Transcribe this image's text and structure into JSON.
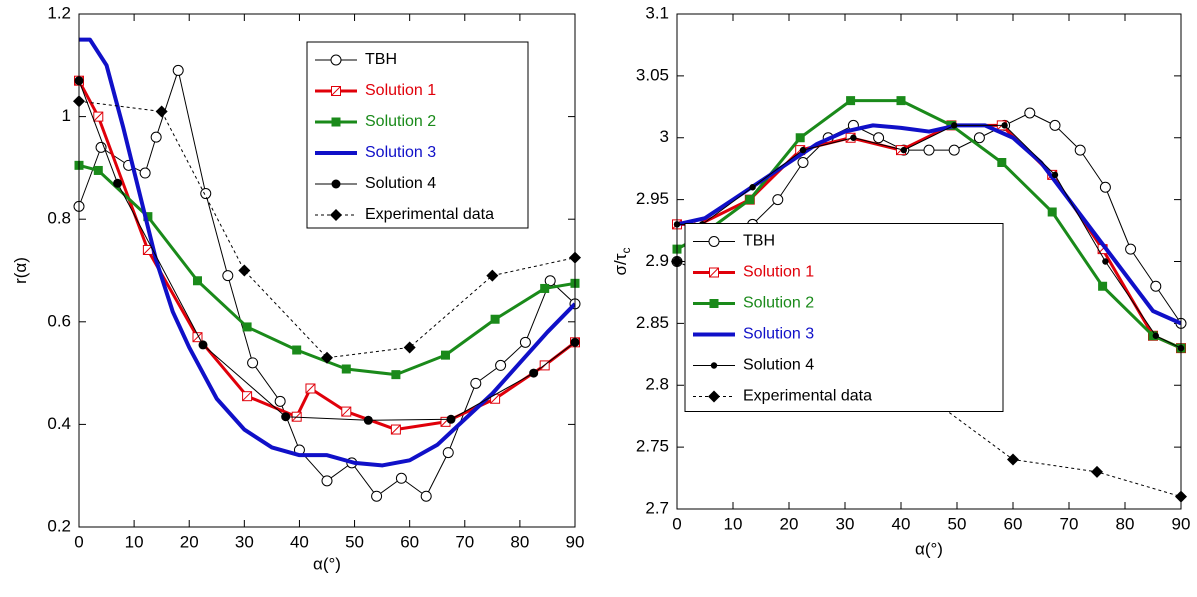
{
  "chart_data": [
    {
      "type": "line",
      "xlabel": "α(°)",
      "ylabel": "r(α)",
      "legend": "upper-right",
      "xlim": [
        0,
        90
      ],
      "xticks": [
        0,
        10,
        20,
        30,
        40,
        50,
        60,
        70,
        80,
        90
      ],
      "ylim": [
        0.2,
        1.2
      ],
      "yticks": [
        0.2,
        0.4,
        0.6,
        0.8,
        1,
        1.2
      ],
      "series": [
        {
          "name": "TBH",
          "color": "#000000",
          "marker": "open-circle",
          "line_width": 1,
          "x": [
            0,
            4,
            9,
            12,
            14,
            18,
            23,
            27,
            31.5,
            36.5,
            40,
            45,
            49.5,
            54,
            58.5,
            63,
            67,
            72,
            76.5,
            81,
            85.5,
            90
          ],
          "values": [
            0.825,
            0.94,
            0.905,
            0.89,
            0.96,
            1.09,
            0.85,
            0.69,
            0.52,
            0.445,
            0.35,
            0.29,
            0.325,
            0.26,
            0.295,
            0.26,
            0.345,
            0.48,
            0.515,
            0.56,
            0.68,
            0.635
          ]
        },
        {
          "name": "Solution 1",
          "color": "#e0000a",
          "marker": "slashed-square",
          "line_width": 3,
          "x": [
            0,
            3.5,
            12.5,
            21.5,
            30.5,
            39.5,
            42,
            48.5,
            57.5,
            66.5,
            75.5,
            84.5,
            90
          ],
          "values": [
            1.07,
            1.0,
            0.74,
            0.57,
            0.455,
            0.415,
            0.47,
            0.425,
            0.39,
            0.405,
            0.45,
            0.515,
            0.56
          ]
        },
        {
          "name": "Solution 2",
          "color": "#1a8a1a",
          "marker": "square",
          "line_width": 3,
          "x": [
            0,
            3.5,
            12.5,
            21.5,
            30.5,
            39.5,
            48.5,
            57.5,
            66.5,
            75.5,
            84.5,
            90
          ],
          "values": [
            0.905,
            0.895,
            0.805,
            0.68,
            0.59,
            0.545,
            0.508,
            0.497,
            0.535,
            0.605,
            0.665,
            0.675
          ]
        },
        {
          "name": "Solution 3",
          "color": "#1010c8",
          "marker": "none",
          "line_width": 4,
          "x": [
            0,
            2,
            5,
            8,
            11,
            14,
            17,
            20,
            25,
            30,
            35,
            40,
            45,
            50,
            55,
            60,
            65,
            70,
            75,
            80,
            85,
            90
          ],
          "values": [
            1.15,
            1.15,
            1.1,
            0.98,
            0.85,
            0.72,
            0.62,
            0.55,
            0.45,
            0.39,
            0.355,
            0.34,
            0.34,
            0.325,
            0.32,
            0.33,
            0.36,
            0.41,
            0.46,
            0.52,
            0.58,
            0.635
          ]
        },
        {
          "name": "Solution 4",
          "color": "#000000",
          "marker": "circle",
          "line_width": 1,
          "x": [
            0,
            7,
            22.5,
            37.5,
            52.5,
            67.5,
            82.5,
            90
          ],
          "values": [
            1.07,
            0.87,
            0.555,
            0.415,
            0.408,
            0.41,
            0.5,
            0.56
          ]
        },
        {
          "name": "Experimental data",
          "color": "#000000",
          "marker": "diamond",
          "line_width": 1,
          "dash": true,
          "x": [
            0,
            15,
            30,
            45,
            60,
            75,
            90
          ],
          "values": [
            1.03,
            1.01,
            0.7,
            0.53,
            0.55,
            0.69,
            0.725
          ]
        }
      ]
    },
    {
      "type": "line",
      "xlabel": "α(°)",
      "ylabel": "σ/τ",
      "ylabel_subscript": "c",
      "legend": "center-left",
      "xlim": [
        0,
        90
      ],
      "xticks": [
        0,
        10,
        20,
        30,
        40,
        50,
        60,
        70,
        80,
        90
      ],
      "ylim": [
        2.7,
        3.1
      ],
      "yticks": [
        2.7,
        2.75,
        2.8,
        2.85,
        2.9,
        2.95,
        3,
        3.05,
        3.1
      ],
      "series": [
        {
          "name": "TBH",
          "color": "#000000",
          "marker": "open-circle",
          "line_width": 1,
          "x": [
            0,
            4.5,
            9,
            13.5,
            18,
            22.5,
            27,
            31.5,
            36,
            40.5,
            45,
            49.5,
            54,
            58.5,
            63,
            67.5,
            72,
            76.5,
            81,
            85.5,
            90
          ],
          "values": [
            2.9,
            2.9,
            2.92,
            2.93,
            2.95,
            2.98,
            3.0,
            3.01,
            3.0,
            2.99,
            2.99,
            2.99,
            3.0,
            3.01,
            3.02,
            3.01,
            2.99,
            2.96,
            2.91,
            2.88,
            2.85
          ]
        },
        {
          "name": "Solution 1",
          "color": "#e0000a",
          "marker": "slashed-square",
          "line_width": 3,
          "x": [
            0,
            4,
            13,
            22,
            31,
            40,
            49,
            58,
            67,
            76,
            85,
            90
          ],
          "values": [
            2.93,
            2.93,
            2.95,
            2.99,
            3.0,
            2.99,
            3.01,
            3.01,
            2.97,
            2.91,
            2.84,
            2.83
          ]
        },
        {
          "name": "Solution 2",
          "color": "#1a8a1a",
          "marker": "square",
          "line_width": 3,
          "x": [
            0,
            4,
            13,
            22,
            31,
            40,
            49,
            58,
            67,
            76,
            85,
            90
          ],
          "values": [
            2.91,
            2.92,
            2.95,
            3.0,
            3.03,
            3.03,
            3.01,
            2.98,
            2.94,
            2.88,
            2.84,
            2.83
          ]
        },
        {
          "name": "Solution 3",
          "color": "#1010c8",
          "marker": "none",
          "line_width": 4,
          "x": [
            0,
            5,
            10,
            15,
            20,
            25,
            30,
            35,
            40,
            45,
            50,
            55,
            60,
            65,
            70,
            75,
            80,
            85,
            90
          ],
          "values": [
            2.93,
            2.935,
            2.95,
            2.965,
            2.98,
            2.995,
            3.005,
            3.01,
            3.008,
            3.005,
            3.01,
            3.01,
            3.0,
            2.98,
            2.95,
            2.92,
            2.89,
            2.86,
            2.85
          ]
        },
        {
          "name": "Solution 4",
          "color": "#000000",
          "marker": "small-circle",
          "line_width": 1,
          "x": [
            0,
            4.5,
            13.5,
            22.5,
            31.5,
            40.5,
            49.5,
            58.5,
            67.5,
            76.5,
            85.5,
            90
          ],
          "values": [
            2.93,
            2.93,
            2.96,
            2.99,
            3.0,
            2.99,
            3.01,
            3.01,
            2.97,
            2.9,
            2.84,
            2.83
          ]
        },
        {
          "name": "Experimental data",
          "color": "#000000",
          "marker": "diamond",
          "line_width": 1,
          "dash": true,
          "x": [
            0,
            15,
            45,
            60,
            75,
            90
          ],
          "values": [
            2.9,
            2.87,
            2.79,
            2.74,
            2.73,
            2.71
          ]
        }
      ]
    }
  ]
}
